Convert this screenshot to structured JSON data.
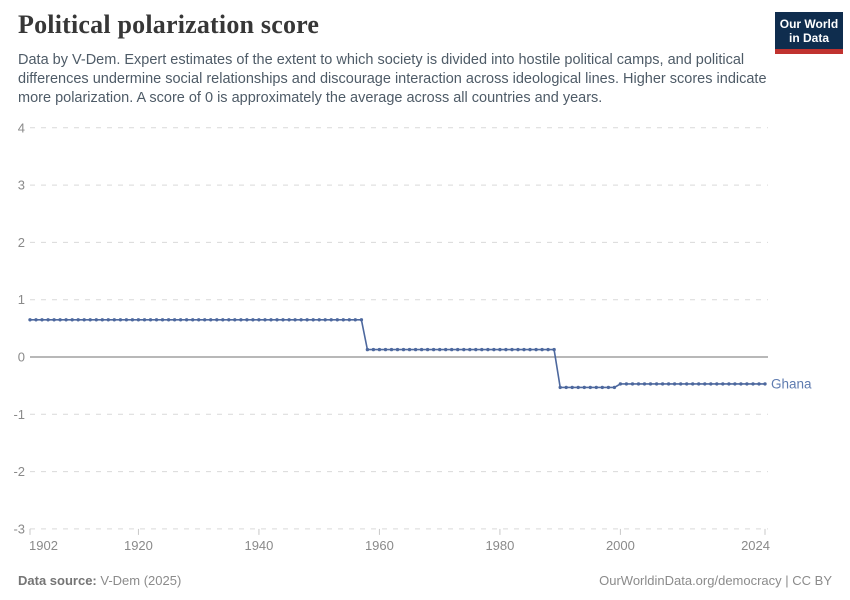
{
  "header": {
    "title": "Political polarization score",
    "logo": {
      "line1": "Our World",
      "line2": "in Data",
      "bg_color": "#0f2d4e",
      "bar_color": "#c0322f"
    }
  },
  "subtitle": "Data by V-Dem. Expert estimates of the extent to which society is divided into hostile political camps, and political differences undermine social relationships and discourage interaction across ideological lines. Higher scores indicate more polarization. A score of 0 is approximately the average across all countries and years.",
  "footer": {
    "source_label": "Data source:",
    "source_value": " V-Dem (2025)",
    "attribution": "OurWorldinData.org/democracy | CC BY"
  },
  "chart_data": {
    "type": "line",
    "title": "Political polarization score",
    "entity_label": "Ghana",
    "xlabel": "",
    "ylabel": "",
    "xlim": [
      1902,
      2024
    ],
    "ylim": [
      -3,
      4
    ],
    "x_ticks": [
      1902,
      1920,
      1940,
      1960,
      1980,
      2000,
      2024
    ],
    "y_ticks": [
      4,
      3,
      2,
      1,
      0,
      -1,
      -2,
      -3
    ],
    "grid": "dashed horizontal gridlines, solid zero line",
    "legend_position": "label at end of line",
    "colors": {
      "line": "#4d689e",
      "entity_label": "#5f7cb0",
      "grid": "#d9d9d9",
      "zero_line": "#b8b8b8",
      "axis_text": "#8a8a8a",
      "tick_mark": "#c8c8c8"
    },
    "series": [
      {
        "name": "Ghana",
        "year_start": 1902,
        "year_end": 2024,
        "segments": [
          {
            "from": 1902,
            "to": 1957,
            "value": 0.65
          },
          {
            "from": 1958,
            "to": 1989,
            "value": 0.13
          },
          {
            "from": 1990,
            "to": 1999,
            "value": -0.53
          },
          {
            "from": 2000,
            "to": 2024,
            "value": -0.47
          }
        ],
        "values": [
          0.65,
          0.65,
          0.65,
          0.65,
          0.65,
          0.65,
          0.65,
          0.65,
          0.65,
          0.65,
          0.65,
          0.65,
          0.65,
          0.65,
          0.65,
          0.65,
          0.65,
          0.65,
          0.65,
          0.65,
          0.65,
          0.65,
          0.65,
          0.65,
          0.65,
          0.65,
          0.65,
          0.65,
          0.65,
          0.65,
          0.65,
          0.65,
          0.65,
          0.65,
          0.65,
          0.65,
          0.65,
          0.65,
          0.65,
          0.65,
          0.65,
          0.65,
          0.65,
          0.65,
          0.65,
          0.65,
          0.65,
          0.65,
          0.65,
          0.65,
          0.65,
          0.65,
          0.65,
          0.65,
          0.65,
          0.65,
          0.13,
          0.13,
          0.13,
          0.13,
          0.13,
          0.13,
          0.13,
          0.13,
          0.13,
          0.13,
          0.13,
          0.13,
          0.13,
          0.13,
          0.13,
          0.13,
          0.13,
          0.13,
          0.13,
          0.13,
          0.13,
          0.13,
          0.13,
          0.13,
          0.13,
          0.13,
          0.13,
          0.13,
          0.13,
          0.13,
          0.13,
          0.13,
          -0.53,
          -0.53,
          -0.53,
          -0.53,
          -0.53,
          -0.53,
          -0.53,
          -0.53,
          -0.53,
          -0.53,
          -0.47,
          -0.47,
          -0.47,
          -0.47,
          -0.47,
          -0.47,
          -0.47,
          -0.47,
          -0.47,
          -0.47,
          -0.47,
          -0.47,
          -0.47,
          -0.47,
          -0.47,
          -0.47,
          -0.47,
          -0.47,
          -0.47,
          -0.47,
          -0.47,
          -0.47,
          -0.47,
          -0.47,
          -0.47
        ]
      }
    ]
  }
}
